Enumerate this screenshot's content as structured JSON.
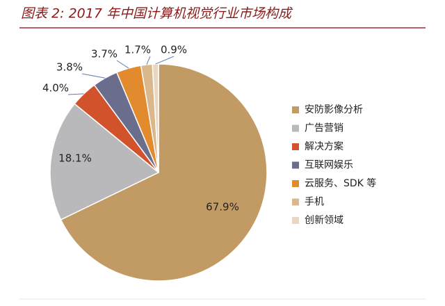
{
  "chart_data": {
    "type": "pie",
    "title": "图表 2: 2017 年中国计算机视觉行业市场构成",
    "categories": [
      "安防影像分析",
      "广告营销",
      "解决方案",
      "互联网娱乐",
      "云服务、SDK 等",
      "手机",
      "创新领域"
    ],
    "values": [
      67.9,
      18.1,
      4.0,
      3.8,
      3.7,
      1.7,
      0.9
    ],
    "value_labels": [
      "67.9%",
      "18.1%",
      "4.0%",
      "3.8%",
      "3.7%",
      "1.7%",
      "0.9%"
    ],
    "colors": [
      "#c29b64",
      "#b9b9bb",
      "#d2522b",
      "#6b6d8d",
      "#e28b2e",
      "#d9b98c",
      "#ead7c2"
    ],
    "legend": "right"
  }
}
